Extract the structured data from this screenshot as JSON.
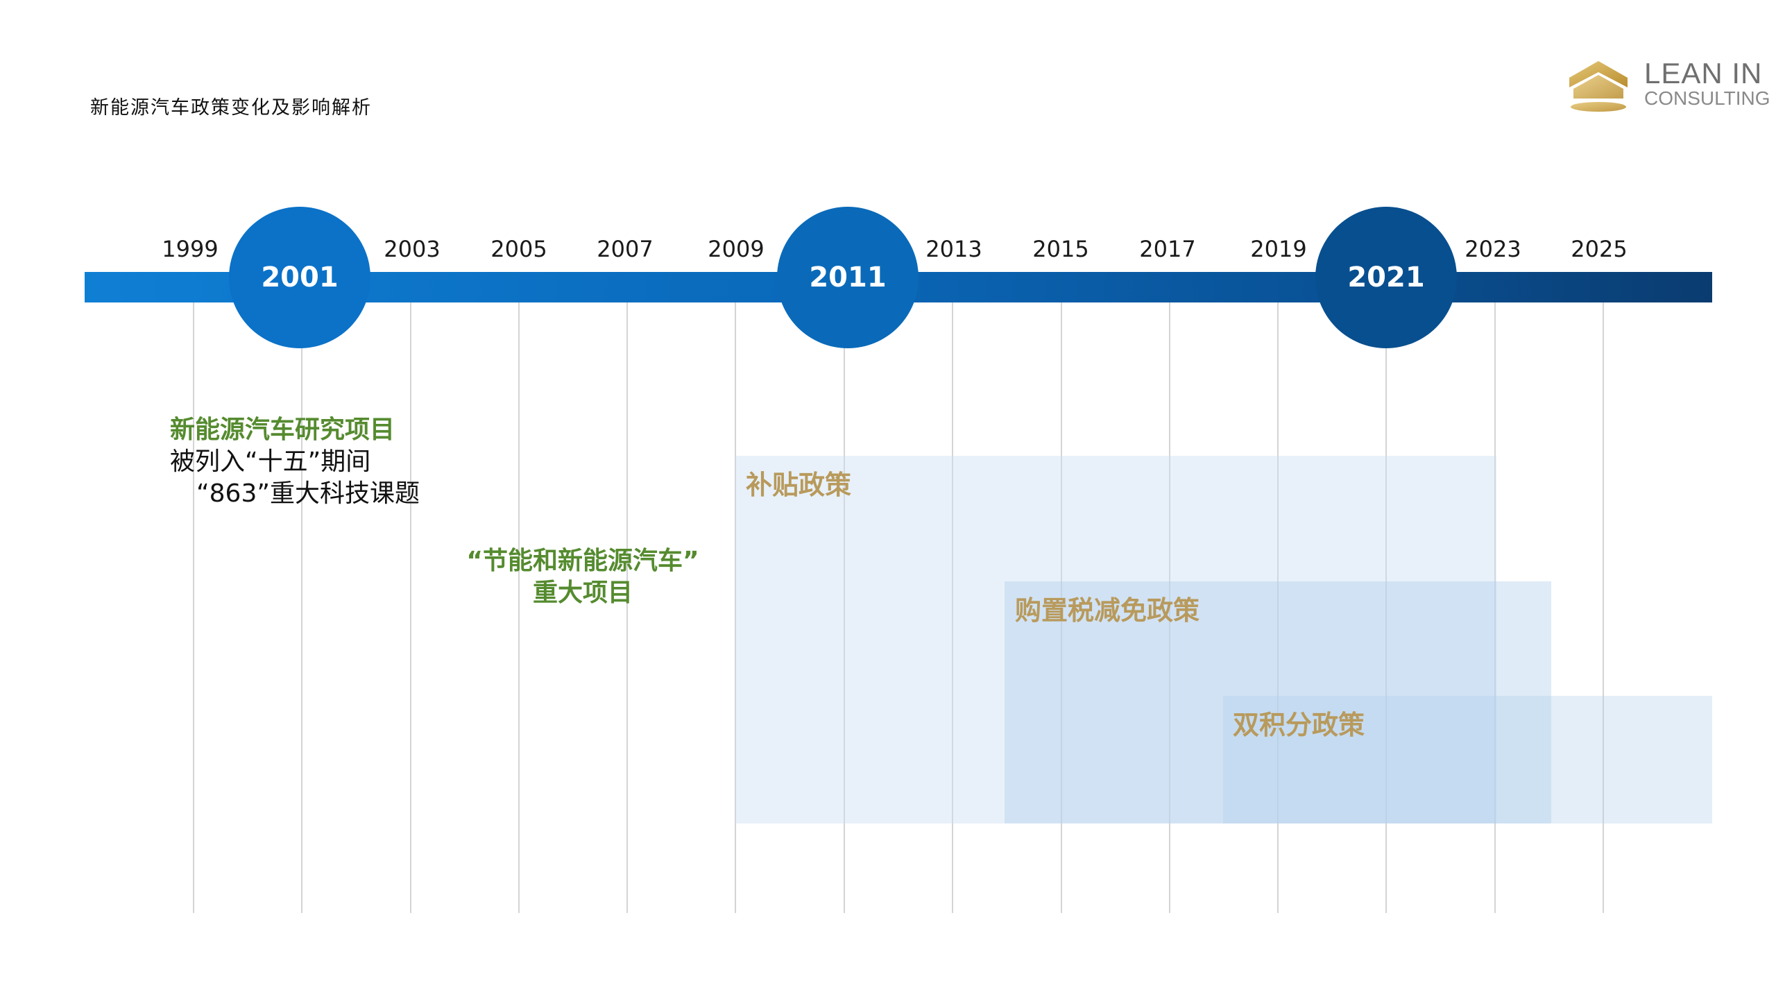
{
  "header": {
    "title": "新能源汽车政策变化及影响解析"
  },
  "logo": {
    "line1": "LEAN IN",
    "line2": "CONSULTING",
    "gold": "#c9a24a"
  },
  "timeline": {
    "years": [
      "1999",
      "2003",
      "2005",
      "2007",
      "2009",
      "2013",
      "2015",
      "2017",
      "2019",
      "2023",
      "2025"
    ],
    "milestones": [
      "2001",
      "2011",
      "2021"
    ],
    "bar_color_start": "#0f7fd4",
    "bar_color_end": "#0a3c70"
  },
  "annotations": {
    "a2001": {
      "line1": "新能源汽车研究项目",
      "line2": "被列入“十五”期间",
      "line3": "“863”重大科技课题"
    },
    "a2006": {
      "line1": "“节能和新能源汽车”",
      "line2": "重大项目"
    }
  },
  "policies": [
    {
      "label": "补贴政策"
    },
    {
      "label": "购置税减免政策"
    },
    {
      "label": "双积分政策"
    }
  ],
  "colors": {
    "annotation_green": "#558b2f",
    "policy_label_gold": "#b89a5c"
  }
}
